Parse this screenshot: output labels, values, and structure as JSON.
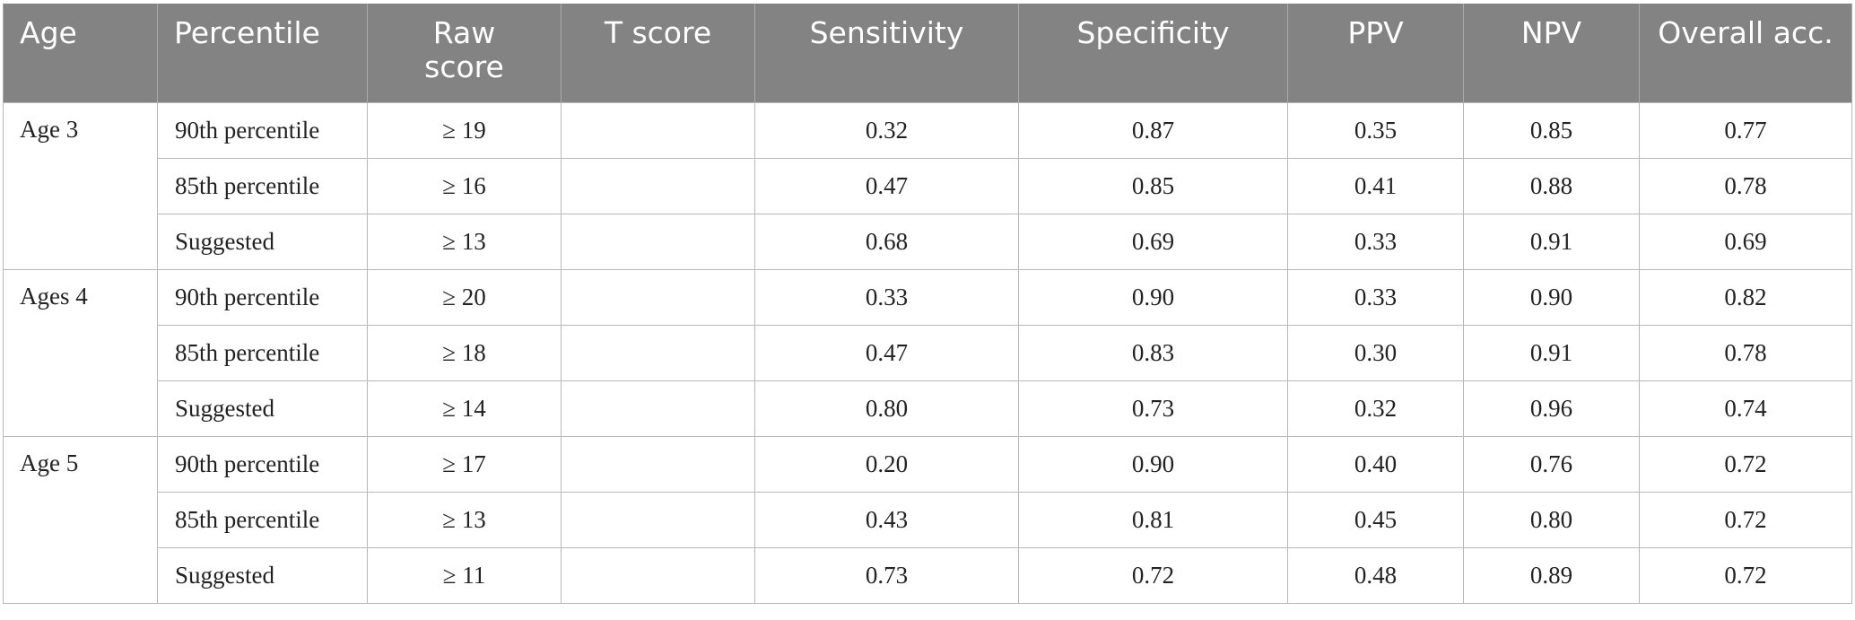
{
  "table": {
    "headers": [
      "Age",
      "Percentile",
      "Raw score",
      "T score",
      "Sensitivity",
      "Specificity",
      "PPV",
      "NPV",
      "Overall acc."
    ],
    "groups": [
      {
        "age": "Age 3",
        "rows": [
          {
            "percentile": "90th percentile",
            "raw": "≥ 19",
            "t": "",
            "sens": "0.32",
            "spec": "0.87",
            "ppv": "0.35",
            "npv": "0.85",
            "acc": "0.77"
          },
          {
            "percentile": "85th percentile",
            "raw": "≥ 16",
            "t": "",
            "sens": "0.47",
            "spec": "0.85",
            "ppv": "0.41",
            "npv": "0.88",
            "acc": "0.78"
          },
          {
            "percentile": "Suggested",
            "raw": "≥ 13",
            "t": "",
            "sens": "0.68",
            "spec": "0.69",
            "ppv": "0.33",
            "npv": "0.91",
            "acc": "0.69"
          }
        ]
      },
      {
        "age": "Ages 4",
        "rows": [
          {
            "percentile": "90th percentile",
            "raw": "≥ 20",
            "t": "",
            "sens": "0.33",
            "spec": "0.90",
            "ppv": "0.33",
            "npv": "0.90",
            "acc": "0.82"
          },
          {
            "percentile": "85th percentile",
            "raw": "≥ 18",
            "t": "",
            "sens": "0.47",
            "spec": "0.83",
            "ppv": "0.30",
            "npv": "0.91",
            "acc": "0.78"
          },
          {
            "percentile": "Suggested",
            "raw": "≥ 14",
            "t": "",
            "sens": "0.80",
            "spec": "0.73",
            "ppv": "0.32",
            "npv": "0.96",
            "acc": "0.74"
          }
        ]
      },
      {
        "age": "Age 5",
        "rows": [
          {
            "percentile": "90th percentile",
            "raw": "≥ 17",
            "t": "",
            "sens": "0.20",
            "spec": "0.90",
            "ppv": "0.40",
            "npv": "0.76",
            "acc": "0.72"
          },
          {
            "percentile": "85th percentile",
            "raw": "≥ 13",
            "t": "",
            "sens": "0.43",
            "spec": "0.81",
            "ppv": "0.45",
            "npv": "0.80",
            "acc": "0.72"
          },
          {
            "percentile": "Suggested",
            "raw": "≥ 11",
            "t": "",
            "sens": "0.73",
            "spec": "0.72",
            "ppv": "0.48",
            "npv": "0.89",
            "acc": "0.72"
          }
        ]
      }
    ]
  },
  "colors": {
    "header_bg": "#828382",
    "header_text": "#ffffff",
    "grid_line": "#b8b8b8"
  }
}
